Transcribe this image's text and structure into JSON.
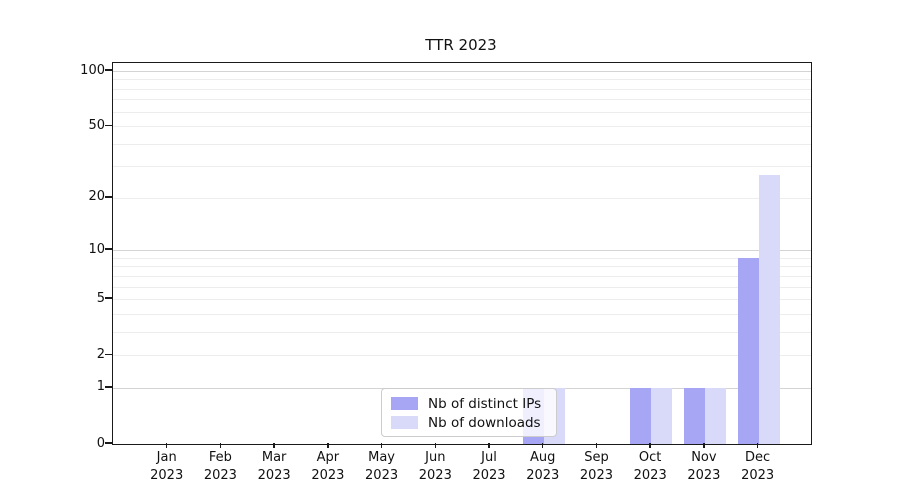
{
  "title": "TTR 2023",
  "chart_data": {
    "type": "bar",
    "title": "TTR 2023",
    "categories": [
      "Jan",
      "Feb",
      "Mar",
      "Apr",
      "May",
      "Jun",
      "Jul",
      "Aug",
      "Sep",
      "Oct",
      "Nov",
      "Dec"
    ],
    "year_label": "2023",
    "series": [
      {
        "name": "Nb of distinct IPs",
        "color": "#a6a6f4",
        "values": [
          0,
          0,
          0,
          0,
          0,
          0,
          0,
          1,
          0,
          1,
          1,
          9
        ]
      },
      {
        "name": "Nb of downloads",
        "color": "#d9d9fa",
        "values": [
          0,
          0,
          0,
          0,
          0,
          0,
          0,
          1,
          0,
          1,
          1,
          27
        ]
      }
    ],
    "yscale": "log10(value+1)",
    "y_ticks": [
      0,
      1,
      2,
      5,
      10,
      20,
      50,
      100
    ],
    "minor_gridlines": [
      2,
      3,
      4,
      5,
      6,
      7,
      8,
      9,
      20,
      30,
      40,
      50,
      60,
      70,
      80,
      90
    ],
    "major_gridlines": [
      1,
      10,
      100
    ],
    "ylim": [
      0,
      110
    ],
    "grid": "horizontal",
    "legend_position": "lower center",
    "colors": {
      "axis": "#1a1a1a",
      "text": "#111111",
      "minor_grid": "#ededed",
      "major_grid": "#d4d4d4",
      "legend_border": "#cccccc"
    }
  }
}
